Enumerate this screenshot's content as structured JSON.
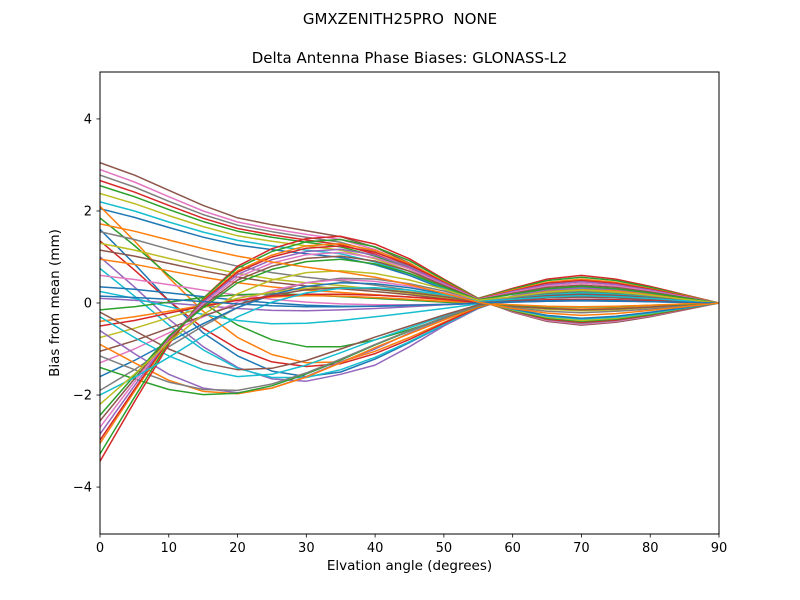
{
  "figure": {
    "suptitle": "GMXZENITH25PRO  NONE",
    "axes_title": "Delta Antenna Phase Biases: GLONASS-L2"
  },
  "chart_data": {
    "type": "line",
    "suptitle": "GMXZENITH25PRO  NONE",
    "title": "Delta Antenna Phase Biases: GLONASS-L2",
    "xlabel": "Elvation angle (degrees)",
    "ylabel": "Bias from mean (mm)",
    "xlim": [
      0,
      90
    ],
    "ylim": [
      -5.02,
      5.02
    ],
    "xticks": [
      0,
      10,
      20,
      30,
      40,
      50,
      60,
      70,
      80,
      90
    ],
    "yticks": [
      -4,
      -2,
      0,
      2,
      4
    ],
    "grid": false,
    "legend": "none",
    "line_width": 1.5,
    "palette": [
      "#1f77b4",
      "#ff7f0e",
      "#2ca02c",
      "#d62728",
      "#9467bd",
      "#8c564b",
      "#e377c2",
      "#7f7f7f",
      "#bcbd22",
      "#17becf"
    ],
    "x": [
      0,
      5,
      10,
      15,
      20,
      25,
      30,
      35,
      40,
      45,
      50,
      55,
      60,
      65,
      70,
      75,
      80,
      85,
      90
    ],
    "series": [
      {
        "color": "#8c564b",
        "values": [
          3.05,
          2.78,
          2.45,
          2.12,
          1.85,
          1.7,
          1.57,
          1.44,
          1.21,
          0.87,
          0.45,
          0.08,
          -0.2,
          -0.4,
          -0.48,
          -0.42,
          -0.3,
          -0.15,
          0
        ]
      },
      {
        "color": "#e377c2",
        "values": [
          2.9,
          2.63,
          2.31,
          2.0,
          1.76,
          1.61,
          1.49,
          1.38,
          1.16,
          0.83,
          0.42,
          0.06,
          -0.19,
          -0.38,
          -0.46,
          -0.4,
          -0.28,
          -0.14,
          0
        ]
      },
      {
        "color": "#7f7f7f",
        "values": [
          2.78,
          2.52,
          2.21,
          1.92,
          1.69,
          1.55,
          1.43,
          1.32,
          1.11,
          0.8,
          0.4,
          0.05,
          -0.18,
          -0.36,
          -0.44,
          -0.38,
          -0.27,
          -0.13,
          0
        ]
      },
      {
        "color": "#d62728",
        "values": [
          2.66,
          2.41,
          2.12,
          1.84,
          1.62,
          1.48,
          1.37,
          1.27,
          1.06,
          0.77,
          0.39,
          0.05,
          -0.17,
          -0.35,
          -0.42,
          -0.37,
          -0.26,
          -0.13,
          0
        ]
      },
      {
        "color": "#2ca02c",
        "values": [
          2.55,
          2.31,
          2.03,
          1.77,
          1.56,
          1.43,
          1.32,
          1.22,
          1.02,
          0.74,
          0.37,
          0.05,
          -0.16,
          -0.33,
          -0.4,
          -0.35,
          -0.25,
          -0.12,
          0
        ]
      },
      {
        "color": "#bcbd22",
        "values": [
          2.38,
          2.16,
          1.9,
          1.66,
          1.46,
          1.34,
          1.24,
          1.15,
          0.96,
          0.69,
          0.35,
          0.04,
          -0.15,
          -0.31,
          -0.38,
          -0.33,
          -0.23,
          -0.11,
          0
        ]
      },
      {
        "color": "#17becf",
        "values": [
          2.2,
          2.0,
          1.76,
          1.54,
          1.36,
          1.24,
          1.15,
          1.07,
          0.89,
          0.64,
          0.32,
          0.04,
          -0.14,
          -0.29,
          -0.35,
          -0.31,
          -0.22,
          -0.11,
          0
        ]
      },
      {
        "color": "#1f77b4",
        "values": [
          2.05,
          1.86,
          1.64,
          1.43,
          1.26,
          1.16,
          1.07,
          0.99,
          0.83,
          0.6,
          0.3,
          0.04,
          -0.13,
          -0.27,
          -0.33,
          -0.29,
          -0.2,
          -0.1,
          0
        ]
      },
      {
        "color": "#ff7f0e",
        "values": [
          2.1,
          1.35,
          0.55,
          -0.18,
          -0.75,
          -1.12,
          -1.3,
          -1.28,
          -1.05,
          -0.75,
          -0.42,
          -0.1,
          0.12,
          0.25,
          0.29,
          0.25,
          0.17,
          0.08,
          0
        ]
      },
      {
        "color": "#1f77b4",
        "values": [
          1.6,
          0.85,
          0.05,
          -0.65,
          -1.15,
          -1.48,
          -1.6,
          -1.5,
          -1.22,
          -0.86,
          -0.48,
          -0.11,
          0.14,
          0.28,
          0.33,
          0.28,
          0.2,
          0.1,
          0
        ]
      },
      {
        "color": "#9467bd",
        "values": [
          1.0,
          0.35,
          -0.35,
          -0.95,
          -1.4,
          -1.65,
          -1.7,
          -1.55,
          -1.35,
          -0.95,
          -0.5,
          -0.12,
          0.15,
          0.3,
          0.35,
          0.3,
          0.21,
          0.1,
          0
        ]
      },
      {
        "color": "#2ca02c",
        "values": [
          1.85,
          1.25,
          0.6,
          0.0,
          -0.48,
          -0.8,
          -0.95,
          -0.95,
          -0.8,
          -0.58,
          -0.33,
          -0.08,
          0.1,
          0.2,
          0.24,
          0.21,
          0.15,
          0.07,
          0
        ]
      },
      {
        "color": "#17becf",
        "values": [
          0.75,
          0.15,
          -0.48,
          -1.02,
          -1.42,
          -1.62,
          -1.62,
          -1.45,
          -1.18,
          -0.84,
          -0.47,
          -0.11,
          0.13,
          0.26,
          0.31,
          0.27,
          0.19,
          0.09,
          0
        ]
      },
      {
        "color": "#d62728",
        "values": [
          1.35,
          0.72,
          0.05,
          -0.55,
          -1.0,
          -1.28,
          -1.38,
          -1.32,
          -1.1,
          -0.79,
          -0.44,
          -0.1,
          0.12,
          0.24,
          0.29,
          0.25,
          0.17,
          0.08,
          0
        ]
      },
      {
        "color": "#bcbd22",
        "values": [
          1.3,
          1.15,
          0.97,
          0.8,
          0.64,
          0.52,
          0.44,
          0.38,
          0.3,
          0.21,
          0.11,
          0.01,
          -0.08,
          -0.14,
          -0.17,
          -0.15,
          -0.1,
          -0.05,
          0
        ]
      },
      {
        "color": "#ff7f0e",
        "values": [
          0.95,
          0.84,
          0.7,
          0.56,
          0.44,
          0.35,
          0.28,
          0.23,
          0.18,
          0.13,
          0.07,
          0.0,
          -0.06,
          -0.11,
          -0.13,
          -0.11,
          -0.08,
          -0.04,
          0
        ]
      },
      {
        "color": "#7f7f7f",
        "values": [
          1.55,
          1.38,
          1.17,
          0.97,
          0.8,
          0.66,
          0.56,
          0.48,
          0.39,
          0.28,
          0.15,
          0.02,
          -0.1,
          -0.18,
          -0.21,
          -0.18,
          -0.13,
          -0.06,
          0
        ]
      },
      {
        "color": "#e377c2",
        "values": [
          0.6,
          0.51,
          0.4,
          0.28,
          0.17,
          0.08,
          0.02,
          -0.02,
          -0.04,
          -0.04,
          -0.03,
          -0.01,
          0.02,
          0.04,
          0.05,
          0.04,
          0.03,
          0.01,
          0
        ]
      },
      {
        "color": "#8c564b",
        "values": [
          1.15,
          1.02,
          0.86,
          0.7,
          0.56,
          0.45,
          0.37,
          0.31,
          0.25,
          0.18,
          0.09,
          0.0,
          -0.07,
          -0.12,
          -0.15,
          -0.13,
          -0.09,
          -0.04,
          0
        ]
      },
      {
        "color": "#1f77b4",
        "values": [
          0.35,
          0.3,
          0.22,
          0.14,
          0.06,
          0.0,
          -0.05,
          -0.07,
          -0.07,
          -0.06,
          -0.04,
          -0.01,
          0.02,
          0.04,
          0.05,
          0.04,
          0.03,
          0.01,
          0
        ]
      },
      {
        "color": "#9467bd",
        "values": [
          0.1,
          0.06,
          0.0,
          -0.06,
          -0.12,
          -0.16,
          -0.17,
          -0.15,
          -0.12,
          -0.08,
          -0.04,
          0.0,
          0.04,
          0.07,
          0.08,
          0.07,
          0.05,
          0.02,
          0
        ]
      },
      {
        "color": "#2ca02c",
        "values": [
          -0.15,
          -0.08,
          0.02,
          0.12,
          0.18,
          0.2,
          0.18,
          0.14,
          0.1,
          0.06,
          0.02,
          -0.01,
          -0.05,
          -0.08,
          -0.09,
          -0.08,
          -0.05,
          -0.03,
          0
        ]
      },
      {
        "color": "#17becf",
        "values": [
          0.25,
          0.1,
          -0.08,
          -0.25,
          -0.38,
          -0.45,
          -0.44,
          -0.38,
          -0.3,
          -0.21,
          -0.12,
          -0.02,
          0.06,
          0.11,
          0.13,
          0.11,
          0.08,
          0.04,
          0
        ]
      },
      {
        "color": "#ff7f0e",
        "values": [
          -0.4,
          -0.3,
          -0.18,
          -0.05,
          0.06,
          0.13,
          0.16,
          0.15,
          0.12,
          0.08,
          0.04,
          0.0,
          -0.04,
          -0.07,
          -0.08,
          -0.07,
          -0.05,
          -0.02,
          0
        ]
      },
      {
        "color": "#7f7f7f",
        "values": [
          -1.9,
          -1.45,
          -0.95,
          -0.5,
          -0.1,
          0.22,
          0.44,
          0.54,
          0.52,
          0.42,
          0.26,
          0.06,
          0.12,
          0.2,
          0.24,
          0.21,
          0.14,
          0.07,
          0
        ]
      },
      {
        "color": "#e377c2",
        "values": [
          -1.3,
          -1.0,
          -0.65,
          -0.3,
          0.02,
          0.27,
          0.44,
          0.51,
          0.47,
          0.37,
          0.22,
          0.05,
          0.1,
          0.17,
          0.2,
          0.17,
          0.12,
          0.06,
          0
        ]
      },
      {
        "color": "#bcbd22",
        "values": [
          -0.75,
          -0.55,
          -0.32,
          -0.1,
          0.1,
          0.24,
          0.32,
          0.34,
          0.31,
          0.24,
          0.15,
          0.03,
          0.07,
          0.12,
          0.14,
          0.12,
          0.08,
          0.04,
          0
        ]
      },
      {
        "color": "#1f77b4",
        "values": [
          -1.6,
          -1.25,
          -0.85,
          -0.45,
          -0.1,
          0.18,
          0.36,
          0.44,
          0.42,
          0.33,
          0.2,
          0.04,
          0.09,
          0.15,
          0.18,
          0.15,
          0.11,
          0.05,
          0
        ]
      },
      {
        "color": "#8c564b",
        "values": [
          -1.05,
          -0.82,
          -0.55,
          -0.28,
          -0.03,
          0.17,
          0.29,
          0.33,
          0.3,
          0.23,
          0.14,
          0.03,
          0.06,
          0.11,
          0.13,
          0.11,
          0.08,
          0.04,
          0
        ]
      },
      {
        "color": "#d62728",
        "values": [
          -0.5,
          -0.38,
          -0.22,
          -0.07,
          0.06,
          0.15,
          0.19,
          0.19,
          0.17,
          0.13,
          0.08,
          0.01,
          0.04,
          0.07,
          0.08,
          0.07,
          0.05,
          0.02,
          0
        ]
      },
      {
        "color": "#9467bd",
        "values": [
          -0.6,
          -1.1,
          -1.55,
          -1.85,
          -1.95,
          -1.85,
          -1.6,
          -1.28,
          -1.0,
          -0.65,
          -0.35,
          -0.08,
          0.15,
          0.28,
          0.33,
          0.29,
          0.2,
          0.1,
          0
        ]
      },
      {
        "color": "#ff7f0e",
        "values": [
          -0.9,
          -1.3,
          -1.68,
          -1.92,
          -1.97,
          -1.85,
          -1.61,
          -1.3,
          -0.97,
          -0.67,
          -0.37,
          -0.09,
          0.13,
          0.25,
          0.29,
          0.26,
          0.18,
          0.09,
          0
        ]
      },
      {
        "color": "#2ca02c",
        "values": [
          -1.4,
          -1.65,
          -1.88,
          -1.99,
          -1.96,
          -1.8,
          -1.54,
          -1.24,
          -0.91,
          -0.61,
          -0.32,
          -0.07,
          0.11,
          0.21,
          0.25,
          0.22,
          0.15,
          0.07,
          0
        ]
      },
      {
        "color": "#17becf",
        "values": [
          -0.3,
          -0.75,
          -1.15,
          -1.45,
          -1.6,
          -1.55,
          -1.35,
          -1.08,
          -0.8,
          -0.54,
          -0.28,
          -0.05,
          0.1,
          0.18,
          0.22,
          0.19,
          0.13,
          0.06,
          0
        ]
      },
      {
        "color": "#7f7f7f",
        "values": [
          -1.15,
          -1.45,
          -1.72,
          -1.88,
          -1.9,
          -1.76,
          -1.52,
          -1.22,
          -0.9,
          -0.6,
          -0.31,
          -0.06,
          0.12,
          0.22,
          0.26,
          0.23,
          0.16,
          0.08,
          0
        ]
      },
      {
        "color": "#8c564b",
        "values": [
          -0.2,
          -0.6,
          -1.0,
          -1.3,
          -1.45,
          -1.42,
          -1.25,
          -1.0,
          -0.74,
          -0.5,
          -0.26,
          -0.04,
          0.09,
          0.16,
          0.19,
          0.17,
          0.12,
          0.06,
          0
        ]
      },
      {
        "color": "#d62728",
        "values": [
          -3.44,
          -2.15,
          -0.9,
          0.1,
          0.8,
          1.18,
          1.4,
          1.45,
          1.28,
          0.96,
          0.52,
          0.1,
          0.32,
          0.52,
          0.6,
          0.52,
          0.36,
          0.18,
          0
        ]
      },
      {
        "color": "#2ca02c",
        "values": [
          -3.28,
          -2.05,
          -0.85,
          0.1,
          0.76,
          1.12,
          1.33,
          1.38,
          1.22,
          0.92,
          0.5,
          0.1,
          0.3,
          0.49,
          0.56,
          0.49,
          0.34,
          0.17,
          0
        ]
      },
      {
        "color": "#ff7f0e",
        "values": [
          -3.05,
          -1.92,
          -0.82,
          0.06,
          0.7,
          1.04,
          1.24,
          1.29,
          1.14,
          0.86,
          0.47,
          0.09,
          0.28,
          0.45,
          0.52,
          0.45,
          0.31,
          0.16,
          0
        ]
      },
      {
        "color": "#d62728",
        "values": [
          -2.98,
          -1.88,
          -0.8,
          0.05,
          0.67,
          1.0,
          1.19,
          1.24,
          1.1,
          0.83,
          0.45,
          0.09,
          0.26,
          0.43,
          0.49,
          0.43,
          0.3,
          0.15,
          0
        ]
      },
      {
        "color": "#9467bd",
        "values": [
          -2.85,
          -1.8,
          -0.78,
          0.02,
          0.62,
          0.94,
          1.12,
          1.17,
          1.04,
          0.78,
          0.43,
          0.08,
          0.25,
          0.4,
          0.46,
          0.4,
          0.28,
          0.14,
          0
        ]
      },
      {
        "color": "#e377c2",
        "values": [
          -2.7,
          -1.72,
          -0.76,
          -0.02,
          0.56,
          0.87,
          1.05,
          1.1,
          0.98,
          0.74,
          0.4,
          0.08,
          0.23,
          0.37,
          0.43,
          0.37,
          0.26,
          0.13,
          0
        ]
      },
      {
        "color": "#8c564b",
        "values": [
          -2.56,
          -1.65,
          -0.74,
          -0.06,
          0.5,
          0.8,
          0.97,
          1.02,
          0.91,
          0.69,
          0.38,
          0.07,
          0.21,
          0.34,
          0.39,
          0.34,
          0.24,
          0.12,
          0
        ]
      },
      {
        "color": "#2ca02c",
        "values": [
          -2.44,
          -1.58,
          -0.72,
          -0.1,
          0.44,
          0.73,
          0.9,
          0.95,
          0.85,
          0.64,
          0.35,
          0.07,
          0.19,
          0.31,
          0.36,
          0.31,
          0.22,
          0.11,
          0
        ]
      },
      {
        "color": "#17becf",
        "values": [
          -2.0,
          -1.62,
          -1.18,
          -0.72,
          -0.3,
          0.02,
          0.22,
          0.32,
          0.33,
          0.28,
          0.18,
          0.04,
          0.08,
          0.13,
          0.16,
          0.14,
          0.1,
          0.05,
          0
        ]
      },
      {
        "color": "#bcbd22",
        "values": [
          -2.2,
          -1.55,
          -0.85,
          -0.25,
          0.2,
          0.5,
          0.66,
          0.7,
          0.64,
          0.5,
          0.3,
          0.06,
          0.14,
          0.24,
          0.28,
          0.24,
          0.17,
          0.08,
          0
        ]
      },
      {
        "color": "#1f77b4",
        "values": [
          0.15,
          0.12,
          0.08,
          0.03,
          -0.02,
          -0.06,
          -0.08,
          -0.08,
          -0.07,
          -0.05,
          -0.03,
          0.0,
          0.03,
          0.05,
          0.06,
          0.05,
          0.03,
          0.02,
          0
        ]
      },
      {
        "color": "#ff7f0e",
        "values": [
          1.72,
          1.56,
          1.37,
          1.18,
          1.02,
          0.89,
          0.78,
          0.68,
          0.56,
          0.4,
          0.21,
          0.02,
          -0.12,
          -0.22,
          -0.27,
          -0.23,
          -0.16,
          -0.08,
          0
        ]
      }
    ]
  }
}
